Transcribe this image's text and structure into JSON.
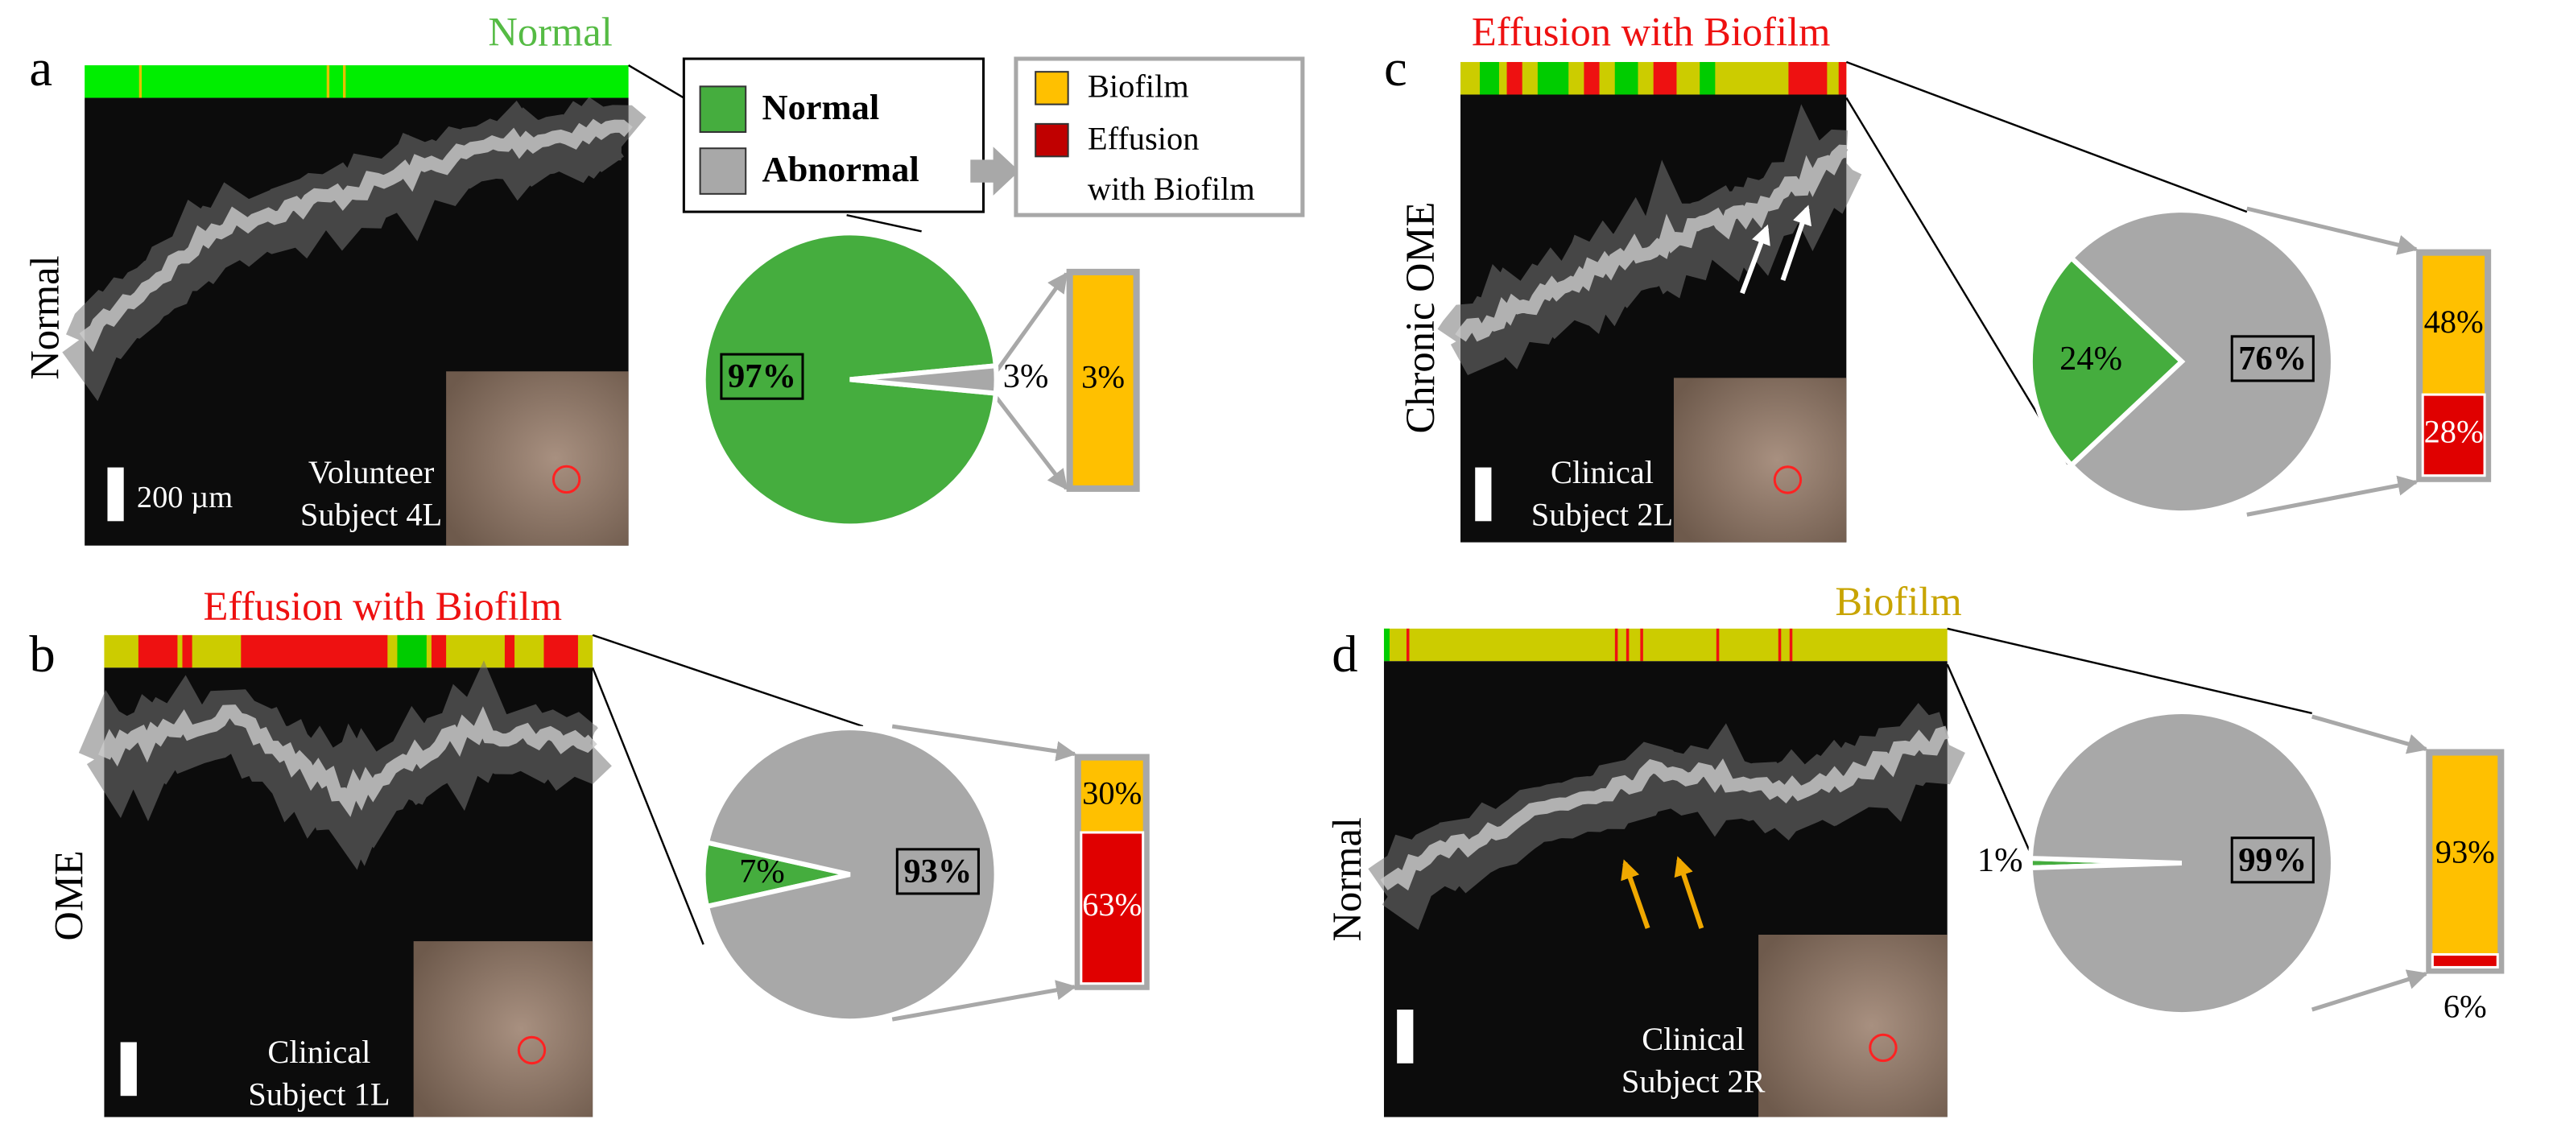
{
  "legend": {
    "abnormal_classes": {
      "items": [
        {
          "name": "Normal",
          "color": "#45ad3e"
        },
        {
          "name": "Abnormal",
          "color": "#a8a8a8"
        }
      ]
    },
    "abnormal_types": {
      "items": [
        {
          "name_lines": [
            "Biofilm"
          ],
          "color": "#ffc000"
        },
        {
          "name_lines": [
            "Effusion",
            "with Biofilm"
          ],
          "color": "#c00000"
        }
      ]
    }
  },
  "chart_data": [
    {
      "type": "pie",
      "panel": "a",
      "heading": "Normal",
      "heading_color": "#55bb44",
      "side_label": "Normal",
      "caption": [
        "Volunteer",
        "Subject 4L"
      ],
      "scale_label": "200 µm",
      "values": [
        97,
        3
      ],
      "value_labels": [
        "97%",
        "3%"
      ],
      "colors": [
        "#45ad3e",
        "#a8a8a8"
      ],
      "breakdown": {
        "values": [
          3
        ],
        "value_labels": [
          "3%"
        ],
        "colors": [
          "#ffc000"
        ]
      }
    },
    {
      "type": "pie",
      "panel": "b",
      "heading": "Effusion with Biofilm",
      "heading_color": "#ee1111",
      "side_label": "OME",
      "caption": [
        "Clinical",
        "Subject 1L"
      ],
      "values": [
        7,
        93
      ],
      "value_labels": [
        "7%",
        "93%"
      ],
      "colors": [
        "#45ad3e",
        "#a8a8a8"
      ],
      "breakdown": {
        "values": [
          30,
          63
        ],
        "value_labels": [
          "30%",
          "63%"
        ],
        "colors": [
          "#ffc000",
          "#e00000"
        ]
      }
    },
    {
      "type": "pie",
      "panel": "c",
      "heading": "Effusion with Biofilm",
      "heading_color": "#ee1111",
      "side_label": "Chronic OME",
      "caption": [
        "Clinical",
        "Subject 2L"
      ],
      "values": [
        24,
        76
      ],
      "value_labels": [
        "24%",
        "76%"
      ],
      "colors": [
        "#45ad3e",
        "#a8a8a8"
      ],
      "breakdown": {
        "values": [
          48,
          28
        ],
        "value_labels": [
          "48%",
          "28%"
        ],
        "colors": [
          "#ffc000",
          "#e00000"
        ]
      }
    },
    {
      "type": "pie",
      "panel": "d",
      "heading": "Biofilm",
      "heading_color": "#c8a400",
      "side_label": "Normal",
      "caption": [
        "Clinical",
        "Subject 2R"
      ],
      "values": [
        1,
        99
      ],
      "value_labels": [
        "1%",
        "99%"
      ],
      "colors": [
        "#45ad3e",
        "#a8a8a8"
      ],
      "breakdown": {
        "values": [
          93,
          6
        ],
        "value_labels": [
          "93%",
          "6%"
        ],
        "colors": [
          "#ffc000",
          "#e00000"
        ]
      }
    }
  ]
}
